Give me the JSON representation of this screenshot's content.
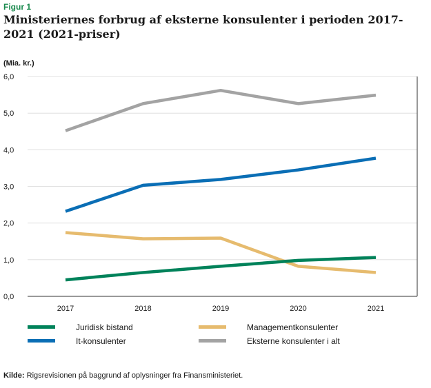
{
  "figure_label": "Figur 1",
  "title": "Ministeriernes forbrug af eksterne konsulenter i perioden 2017-2021 (2021-priser)",
  "unit_label": "(Mia. kr.)",
  "source": {
    "label": "Kilde:",
    "text": "Rigsrevisionen på baggrund af oplysninger fra Finansministeriet."
  },
  "chart_data": {
    "type": "line",
    "title": "Ministeriernes forbrug af eksterne konsulenter i perioden 2017-2021 (2021-priser)",
    "ylabel": "(Mia. kr.)",
    "xlabel": "",
    "x": [
      "2017",
      "2018",
      "2019",
      "2020",
      "2021"
    ],
    "ylim": [
      0,
      6
    ],
    "yticks": [
      "0,0",
      "1,0",
      "2,0",
      "3,0",
      "4,0",
      "5,0",
      "6,0"
    ],
    "grid": true,
    "legend_position": "bottom",
    "series": [
      {
        "name": "Juridisk bistand",
        "color": "#00825a",
        "values": [
          0.45,
          0.65,
          0.82,
          0.98,
          1.06
        ]
      },
      {
        "name": "Managementkonsulenter",
        "color": "#e6bb6e",
        "values": [
          1.74,
          1.57,
          1.59,
          0.82,
          0.65
        ]
      },
      {
        "name": "It-konsulenter",
        "color": "#0a6eb5",
        "values": [
          2.32,
          3.03,
          3.19,
          3.45,
          3.77
        ]
      },
      {
        "name": "Eksterne konsulenter i alt",
        "color": "#a3a3a3",
        "values": [
          4.52,
          5.26,
          5.62,
          5.26,
          5.49
        ]
      }
    ]
  }
}
